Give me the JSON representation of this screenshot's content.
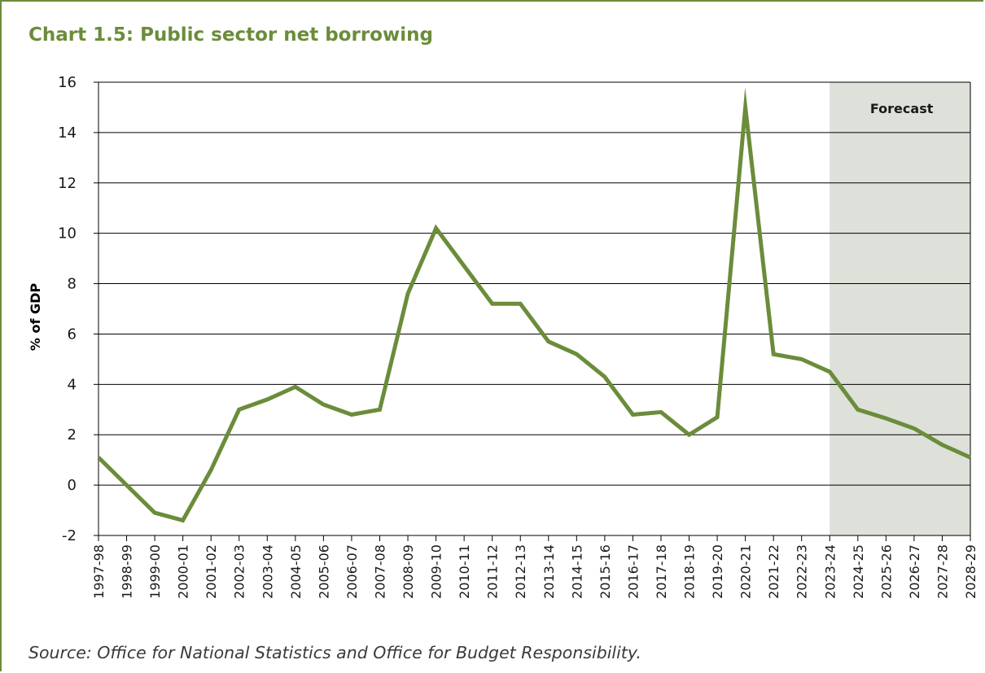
{
  "chart_data": {
    "type": "line",
    "title": "Chart 1.5: Public sector net borrowing",
    "ylabel": "% of GDP",
    "xlabel": "",
    "ylim": [
      -2,
      16
    ],
    "yticks": [
      -2,
      0,
      2,
      4,
      6,
      8,
      10,
      12,
      14,
      16
    ],
    "grid": "horizontal",
    "categories": [
      "1997-98",
      "1998-99",
      "1999-00",
      "2000-01",
      "2001-02",
      "2002-03",
      "2003-04",
      "2004-05",
      "2005-06",
      "2006-07",
      "2007-08",
      "2008-09",
      "2009-10",
      "2010-11",
      "2011-12",
      "2012-13",
      "2013-14",
      "2014-15",
      "2015-16",
      "2016-17",
      "2017-18",
      "2018-19",
      "2019-20",
      "2020-21",
      "2021-22",
      "2022-23",
      "2023-24",
      "2024-25",
      "2025-26",
      "2026-27",
      "2027-28",
      "2028-29"
    ],
    "series": [
      {
        "values": [
          1.1,
          0.0,
          -1.1,
          -1.4,
          0.6,
          3.0,
          3.4,
          3.9,
          3.2,
          2.8,
          3.0,
          7.6,
          10.2,
          8.7,
          7.2,
          7.2,
          5.7,
          5.2,
          4.3,
          2.8,
          2.9,
          2.0,
          2.7,
          15.0,
          5.2,
          5.0,
          4.5,
          3.0,
          2.65,
          2.25,
          1.6,
          1.1
        ],
        "color": "#6b8c3a"
      }
    ],
    "shaded_region": {
      "label": "Forecast",
      "start": "2023-24",
      "end": "2028-29",
      "color": "#dde1d9"
    },
    "source": "Source: Office for National Statistics and Office for Budget Responsibility."
  },
  "colors": {
    "accent": "#6b8c3a",
    "gridline": "#000000",
    "forecast_shade": "#dde1d9"
  }
}
